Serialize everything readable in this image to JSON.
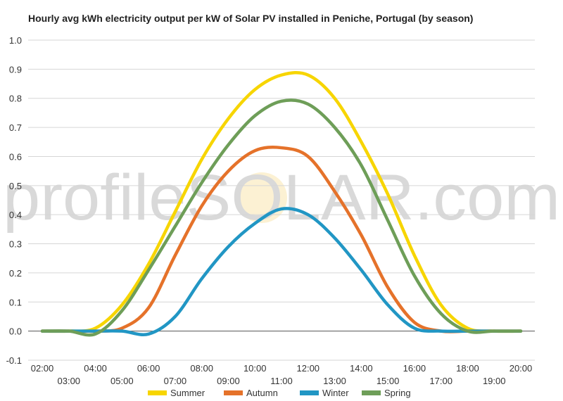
{
  "chart_data": {
    "type": "line",
    "title": "Hourly avg kWh electricity output per kW of Solar PV installed in Peniche, Portugal (by season)",
    "xlabel": "",
    "ylabel": "",
    "ylim": [
      -0.1,
      1.0
    ],
    "yticks": [
      "-0.1",
      "0.0",
      "0.1",
      "0.2",
      "0.3",
      "0.4",
      "0.5",
      "0.6",
      "0.7",
      "0.8",
      "0.9",
      "1.0"
    ],
    "categories": [
      "02:00",
      "03:00",
      "04:00",
      "05:00",
      "06:00",
      "07:00",
      "08:00",
      "09:00",
      "10:00",
      "11:00",
      "12:00",
      "13:00",
      "14:00",
      "15:00",
      "16:00",
      "17:00",
      "18:00",
      "19:00",
      "20:00"
    ],
    "grid": true,
    "legend_position": "bottom",
    "watermark": "profileSOLAR.com",
    "series": [
      {
        "name": "Summer",
        "color": "#F7D500",
        "values": [
          0.0,
          0.0,
          0.01,
          0.09,
          0.23,
          0.41,
          0.59,
          0.73,
          0.83,
          0.88,
          0.88,
          0.8,
          0.65,
          0.47,
          0.26,
          0.09,
          0.01,
          0.0,
          0.0
        ]
      },
      {
        "name": "Autumn",
        "color": "#E5722A",
        "values": [
          0.0,
          0.0,
          0.0,
          0.01,
          0.08,
          0.26,
          0.43,
          0.55,
          0.62,
          0.63,
          0.6,
          0.48,
          0.33,
          0.15,
          0.03,
          0.0,
          0.0,
          0.0,
          0.0
        ]
      },
      {
        "name": "Winter",
        "color": "#2196C4",
        "values": [
          0.0,
          0.0,
          0.0,
          0.0,
          -0.01,
          0.05,
          0.18,
          0.29,
          0.37,
          0.42,
          0.4,
          0.32,
          0.21,
          0.09,
          0.01,
          0.0,
          0.0,
          0.0,
          0.0
        ]
      },
      {
        "name": "Spring",
        "color": "#6E9E58",
        "values": [
          0.0,
          0.0,
          -0.01,
          0.07,
          0.21,
          0.36,
          0.51,
          0.64,
          0.74,
          0.79,
          0.78,
          0.7,
          0.57,
          0.38,
          0.19,
          0.06,
          0.0,
          0.0,
          0.0
        ]
      }
    ]
  }
}
